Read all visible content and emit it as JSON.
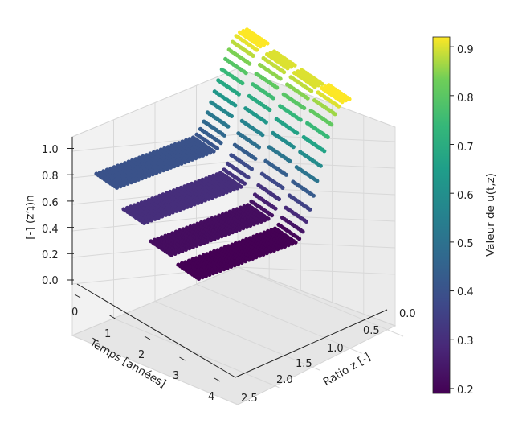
{
  "chart_data": {
    "type": "scatter3d",
    "title": "",
    "x_axis": {
      "label": "Temps [années]",
      "ticks": [
        "0",
        "1",
        "2",
        "3",
        "4"
      ],
      "range": [
        0,
        4
      ]
    },
    "y_axis": {
      "label": "Ratio z [-]",
      "ticks": [
        "0.0",
        "0.5",
        "1.0",
        "1.5",
        "2.0",
        "2.5"
      ],
      "range": [
        0,
        2.5
      ]
    },
    "z_axis": {
      "label": "u(t,z) [-]",
      "ticks": [
        "0.0",
        "0.2",
        "0.4",
        "0.6",
        "0.8",
        "1.0"
      ],
      "range": [
        0,
        1
      ]
    },
    "colorbar": {
      "label": "Valeur de u(t,z)",
      "colormap": "viridis",
      "range": [
        0.19,
        0.92
      ],
      "ticks": [
        "0.2",
        "0.3",
        "0.4",
        "0.5",
        "0.6",
        "0.7",
        "0.8",
        "0.9"
      ]
    },
    "series": [
      {
        "time": 0,
        "u_min": 0.4,
        "u_max": 0.92,
        "rise_start_z": 0.9,
        "rise_end_z": 0.1
      },
      {
        "time": 1,
        "u_min": 0.3,
        "u_max": 0.9,
        "rise_start_z": 0.9,
        "rise_end_z": 0.1
      },
      {
        "time": 2,
        "u_min": 0.22,
        "u_max": 0.9,
        "rise_start_z": 0.9,
        "rise_end_z": 0.1
      },
      {
        "time": 3,
        "u_min": 0.19,
        "u_max": 0.92,
        "rise_start_z": 0.9,
        "rise_end_z": 0.1
      }
    ],
    "grid": true
  }
}
